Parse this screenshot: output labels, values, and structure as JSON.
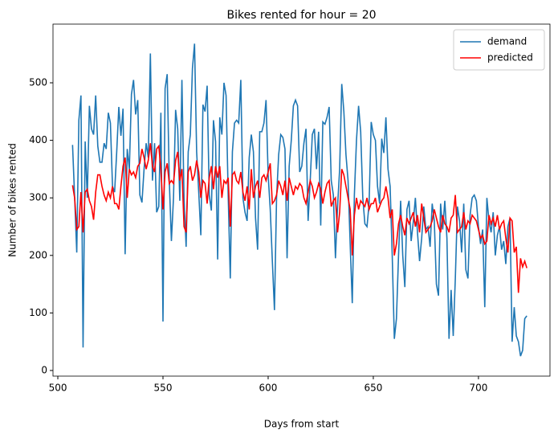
{
  "chart_data": {
    "type": "line",
    "title": "Bikes rented for hour = 20",
    "x_label": "Days from start",
    "y_label": "Number of bikes rented",
    "x": [
      507,
      508,
      509,
      510,
      511,
      512,
      513,
      514,
      515,
      516,
      517,
      518,
      519,
      520,
      521,
      522,
      523,
      524,
      525,
      526,
      527,
      528,
      529,
      530,
      531,
      532,
      533,
      534,
      535,
      536,
      537,
      538,
      539,
      540,
      541,
      542,
      543,
      544,
      545,
      546,
      547,
      548,
      549,
      550,
      551,
      552,
      553,
      554,
      555,
      556,
      557,
      558,
      559,
      560,
      561,
      562,
      563,
      564,
      565,
      566,
      567,
      568,
      569,
      570,
      571,
      572,
      573,
      574,
      575,
      576,
      577,
      578,
      579,
      580,
      581,
      582,
      583,
      584,
      585,
      586,
      587,
      588,
      589,
      590,
      591,
      592,
      593,
      594,
      595,
      596,
      597,
      598,
      599,
      600,
      601,
      602,
      603,
      604,
      605,
      606,
      607,
      608,
      609,
      610,
      611,
      612,
      613,
      614,
      615,
      616,
      617,
      618,
      619,
      620,
      621,
      622,
      623,
      624,
      625,
      626,
      627,
      628,
      629,
      630,
      631,
      632,
      633,
      634,
      635,
      636,
      637,
      638,
      639,
      640,
      641,
      642,
      643,
      644,
      645,
      646,
      647,
      648,
      649,
      650,
      651,
      652,
      653,
      654,
      655,
      656,
      657,
      658,
      659,
      660,
      661,
      662,
      663,
      664,
      665,
      666,
      667,
      668,
      669,
      670,
      671,
      672,
      673,
      674,
      675,
      676,
      677,
      678,
      679,
      680,
      681,
      682,
      683,
      684,
      685,
      686,
      687,
      688,
      689,
      690,
      691,
      692,
      693,
      694,
      695,
      696,
      697,
      698,
      699,
      700,
      701,
      702,
      703,
      704,
      705,
      706,
      707,
      708,
      709,
      710,
      711,
      712,
      713,
      714,
      715,
      716,
      717,
      718,
      719,
      720,
      721,
      722,
      723
    ],
    "series": [
      {
        "name": "demand",
        "color": "#1f77b4",
        "values": [
          392,
          300,
          205,
          435,
          478,
          40,
          398,
          300,
          460,
          420,
          410,
          478,
          390,
          362,
          362,
          395,
          385,
          448,
          430,
          320,
          310,
          380,
          458,
          408,
          455,
          202,
          385,
          350,
          480,
          505,
          445,
          470,
          305,
          292,
          350,
          395,
          370,
          551,
          330,
          395,
          275,
          285,
          448,
          85,
          490,
          515,
          330,
          225,
          300,
          453,
          420,
          295,
          505,
          300,
          215,
          380,
          410,
          525,
          568,
          380,
          310,
          235,
          462,
          450,
          495,
          305,
          278,
          435,
          398,
          193,
          440,
          410,
          500,
          478,
          305,
          160,
          380,
          430,
          435,
          430,
          505,
          300,
          275,
          260,
          370,
          410,
          380,
          265,
          210,
          415,
          415,
          430,
          470,
          340,
          280,
          190,
          105,
          300,
          375,
          410,
          405,
          385,
          195,
          355,
          400,
          460,
          470,
          460,
          345,
          355,
          395,
          420,
          260,
          330,
          410,
          420,
          350,
          415,
          252,
          432,
          428,
          440,
          458,
          330,
          305,
          195,
          285,
          350,
          498,
          450,
          375,
          330,
          220,
          117,
          305,
          400,
          460,
          415,
          300,
          255,
          250,
          290,
          432,
          410,
          400,
          320,
          290,
          403,
          378,
          440,
          350,
          320,
          200,
          55,
          90,
          200,
          295,
          200,
          145,
          280,
          295,
          225,
          258,
          300,
          240,
          190,
          230,
          285,
          245,
          250,
          215,
          290,
          260,
          150,
          130,
          290,
          245,
          295,
          230,
          55,
          140,
          60,
          160,
          285,
          260,
          205,
          290,
          175,
          160,
          270,
          300,
          305,
          295,
          250,
          220,
          245,
          110,
          300,
          260,
          240,
          275,
          200,
          235,
          250,
          210,
          225,
          185,
          250,
          265,
          50,
          110,
          60,
          50,
          25,
          35,
          90,
          95
        ]
      },
      {
        "name": "predicted",
        "color": "#ff0000",
        "values": [
          322,
          300,
          245,
          250,
          310,
          240,
          310,
          315,
          295,
          285,
          262,
          310,
          340,
          340,
          320,
          305,
          295,
          310,
          300,
          320,
          290,
          290,
          280,
          320,
          355,
          370,
          300,
          350,
          340,
          345,
          335,
          355,
          360,
          385,
          370,
          350,
          365,
          395,
          355,
          345,
          385,
          390,
          350,
          280,
          345,
          360,
          325,
          330,
          325,
          365,
          380,
          330,
          350,
          250,
          240,
          345,
          355,
          330,
          340,
          365,
          345,
          300,
          330,
          325,
          290,
          335,
          355,
          315,
          355,
          335,
          355,
          300,
          330,
          325,
          335,
          250,
          340,
          345,
          330,
          325,
          345,
          310,
          295,
          320,
          280,
          350,
          300,
          320,
          330,
          300,
          335,
          340,
          330,
          345,
          360,
          290,
          295,
          305,
          330,
          320,
          305,
          330,
          295,
          335,
          320,
          305,
          320,
          315,
          325,
          320,
          300,
          290,
          310,
          330,
          320,
          300,
          310,
          325,
          315,
          290,
          310,
          325,
          330,
          285,
          295,
          300,
          240,
          275,
          350,
          340,
          320,
          300,
          280,
          200,
          270,
          300,
          280,
          295,
          290,
          285,
          300,
          280,
          290,
          290,
          300,
          275,
          285,
          295,
          300,
          320,
          300,
          265,
          280,
          200,
          220,
          255,
          270,
          250,
          235,
          265,
          255,
          265,
          275,
          250,
          270,
          240,
          290,
          265,
          240,
          245,
          250,
          260,
          280,
          265,
          250,
          240,
          270,
          255,
          250,
          240,
          265,
          270,
          305,
          240,
          245,
          250,
          275,
          245,
          260,
          255,
          270,
          265,
          260,
          245,
          230,
          235,
          220,
          225,
          270,
          255,
          265,
          250,
          270,
          245,
          255,
          260,
          230,
          205,
          265,
          260,
          205,
          215,
          135,
          195,
          180,
          190,
          178
        ]
      }
    ],
    "xlim": [
      497.7,
      734
    ],
    "ylim": [
      -9.8,
      602
    ],
    "xticks": [
      500,
      550,
      600,
      650,
      700
    ],
    "yticks": [
      0,
      100,
      200,
      300,
      400,
      500
    ],
    "legend": "upper right"
  }
}
